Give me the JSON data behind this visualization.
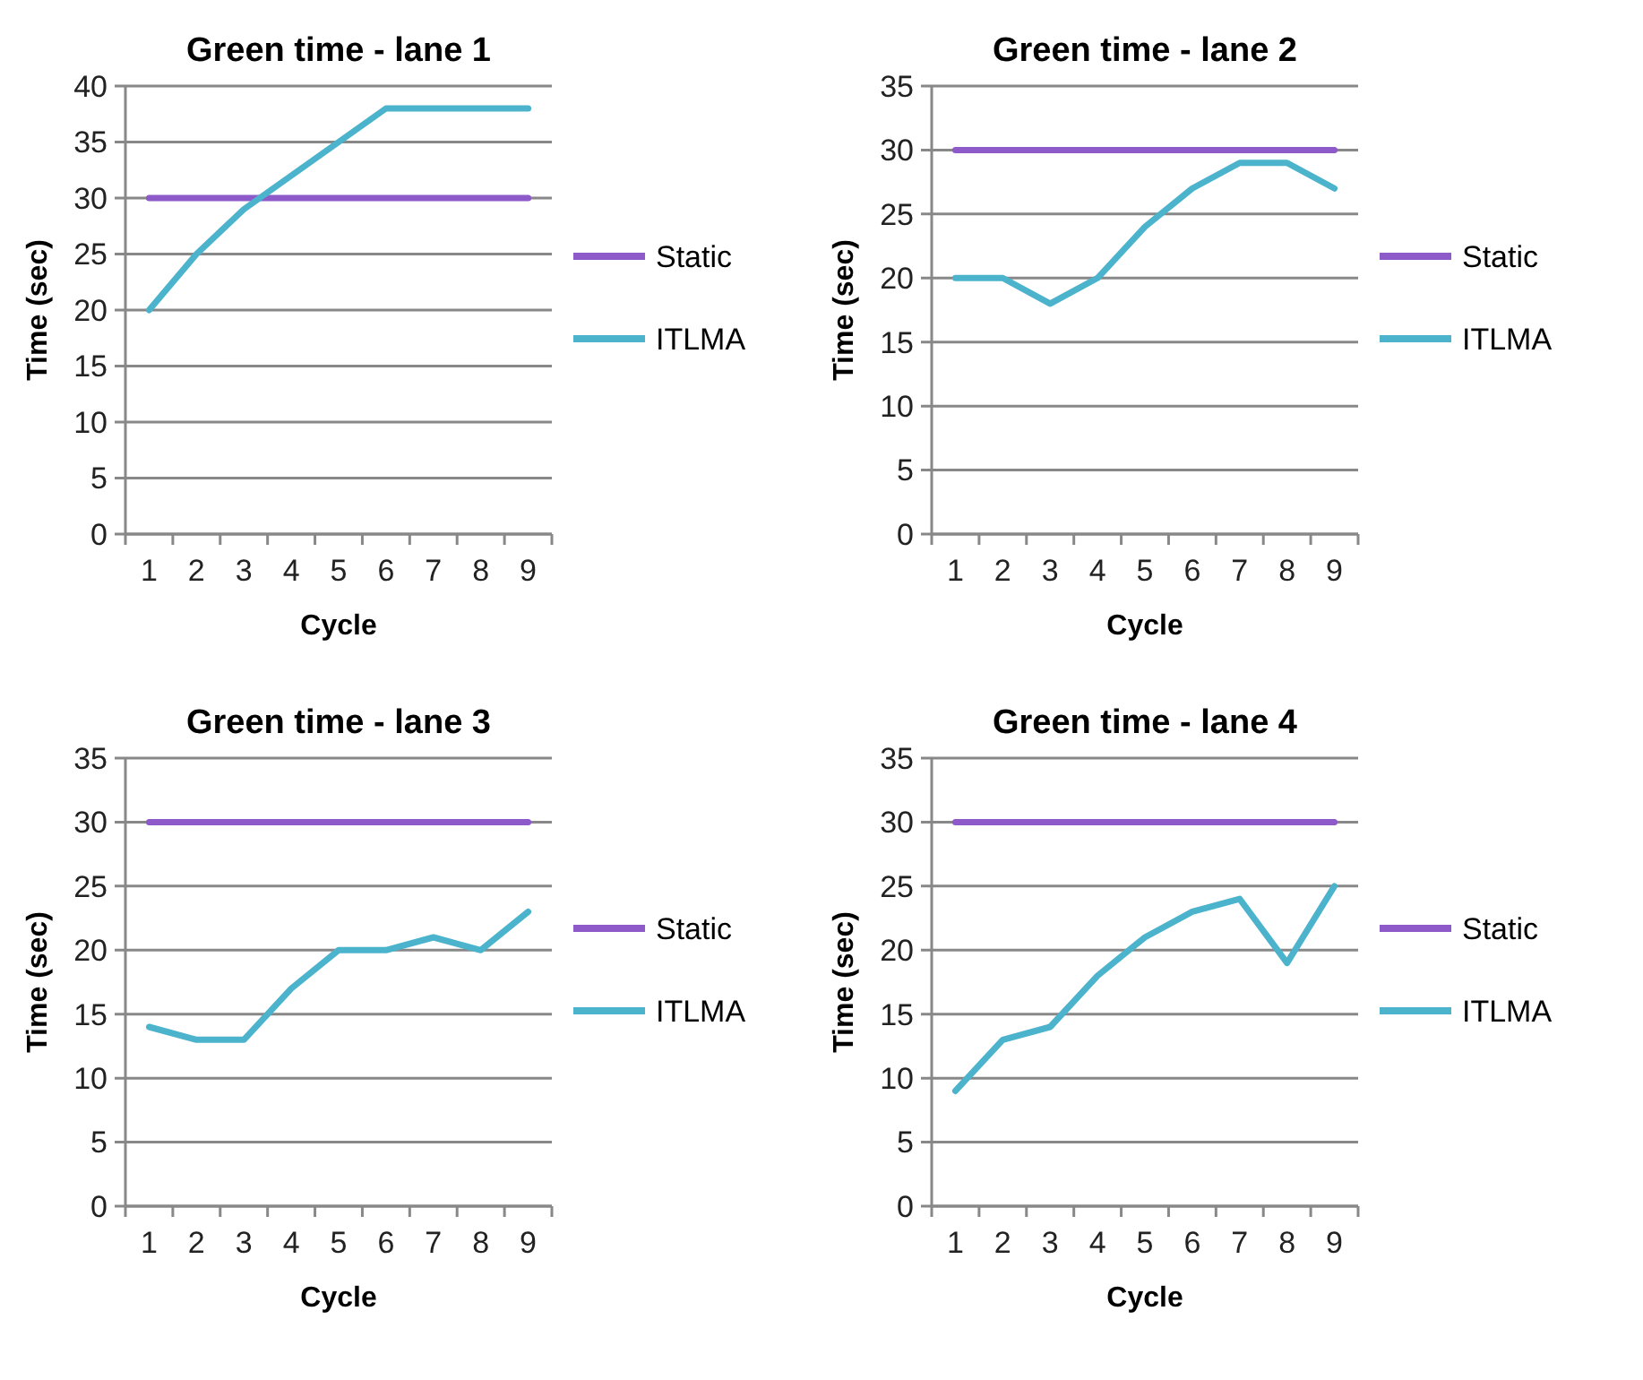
{
  "chart_data": [
    {
      "type": "line",
      "title": "Green time - lane 1",
      "xlabel": "Cycle",
      "ylabel": "Time (sec)",
      "categories": [
        "1",
        "2",
        "3",
        "4",
        "5",
        "6",
        "7",
        "8",
        "9"
      ],
      "series": [
        {
          "name": "Static",
          "color": "#8e59c9",
          "values": [
            30,
            30,
            30,
            30,
            30,
            30,
            30,
            30,
            30
          ]
        },
        {
          "name": "ITLMA",
          "color": "#4bb3cc",
          "values": [
            20,
            25,
            29,
            32,
            35,
            38,
            38,
            38,
            38
          ]
        }
      ],
      "ylim": [
        0,
        40
      ],
      "yticks": [
        0,
        5,
        10,
        15,
        20,
        25,
        30,
        35,
        40
      ],
      "grid": "y",
      "legend": "right",
      "marker": "none"
    },
    {
      "type": "line",
      "title": "Green time - lane 2",
      "xlabel": "Cycle",
      "ylabel": "Time (sec)",
      "categories": [
        "1",
        "2",
        "3",
        "4",
        "5",
        "6",
        "7",
        "8",
        "9"
      ],
      "series": [
        {
          "name": "Static",
          "color": "#8e59c9",
          "values": [
            30,
            30,
            30,
            30,
            30,
            30,
            30,
            30,
            30
          ]
        },
        {
          "name": "ITLMA",
          "color": "#4bb3cc",
          "values": [
            20,
            20,
            18,
            20,
            24,
            27,
            29,
            29,
            27
          ]
        }
      ],
      "ylim": [
        0,
        35
      ],
      "yticks": [
        0,
        5,
        10,
        15,
        20,
        25,
        30,
        35
      ],
      "grid": "y",
      "legend": "right",
      "marker": "none"
    },
    {
      "type": "line",
      "title": "Green time - lane 3",
      "xlabel": "Cycle",
      "ylabel": "Time (sec)",
      "categories": [
        "1",
        "2",
        "3",
        "4",
        "5",
        "6",
        "7",
        "8",
        "9"
      ],
      "series": [
        {
          "name": "Static",
          "color": "#8e59c9",
          "values": [
            30,
            30,
            30,
            30,
            30,
            30,
            30,
            30,
            30
          ]
        },
        {
          "name": "ITLMA",
          "color": "#4bb3cc",
          "values": [
            14,
            13,
            13,
            17,
            20,
            20,
            21,
            20,
            23
          ]
        }
      ],
      "ylim": [
        0,
        35
      ],
      "yticks": [
        0,
        5,
        10,
        15,
        20,
        25,
        30,
        35
      ],
      "grid": "y",
      "legend": "right",
      "marker": "none"
    },
    {
      "type": "line",
      "title": "Green time - lane 4",
      "xlabel": "Cycle",
      "ylabel": "Time (sec)",
      "categories": [
        "1",
        "2",
        "3",
        "4",
        "5",
        "6",
        "7",
        "8",
        "9"
      ],
      "series": [
        {
          "name": "Static",
          "color": "#8e59c9",
          "values": [
            30,
            30,
            30,
            30,
            30,
            30,
            30,
            30,
            30
          ]
        },
        {
          "name": "ITLMA",
          "color": "#4bb3cc",
          "values": [
            9,
            13,
            14,
            18,
            21,
            23,
            24,
            19,
            25
          ]
        }
      ],
      "ylim": [
        0,
        35
      ],
      "yticks": [
        0,
        5,
        10,
        15,
        20,
        25,
        30,
        35
      ],
      "grid": "y",
      "legend": "right",
      "marker": "none"
    }
  ]
}
